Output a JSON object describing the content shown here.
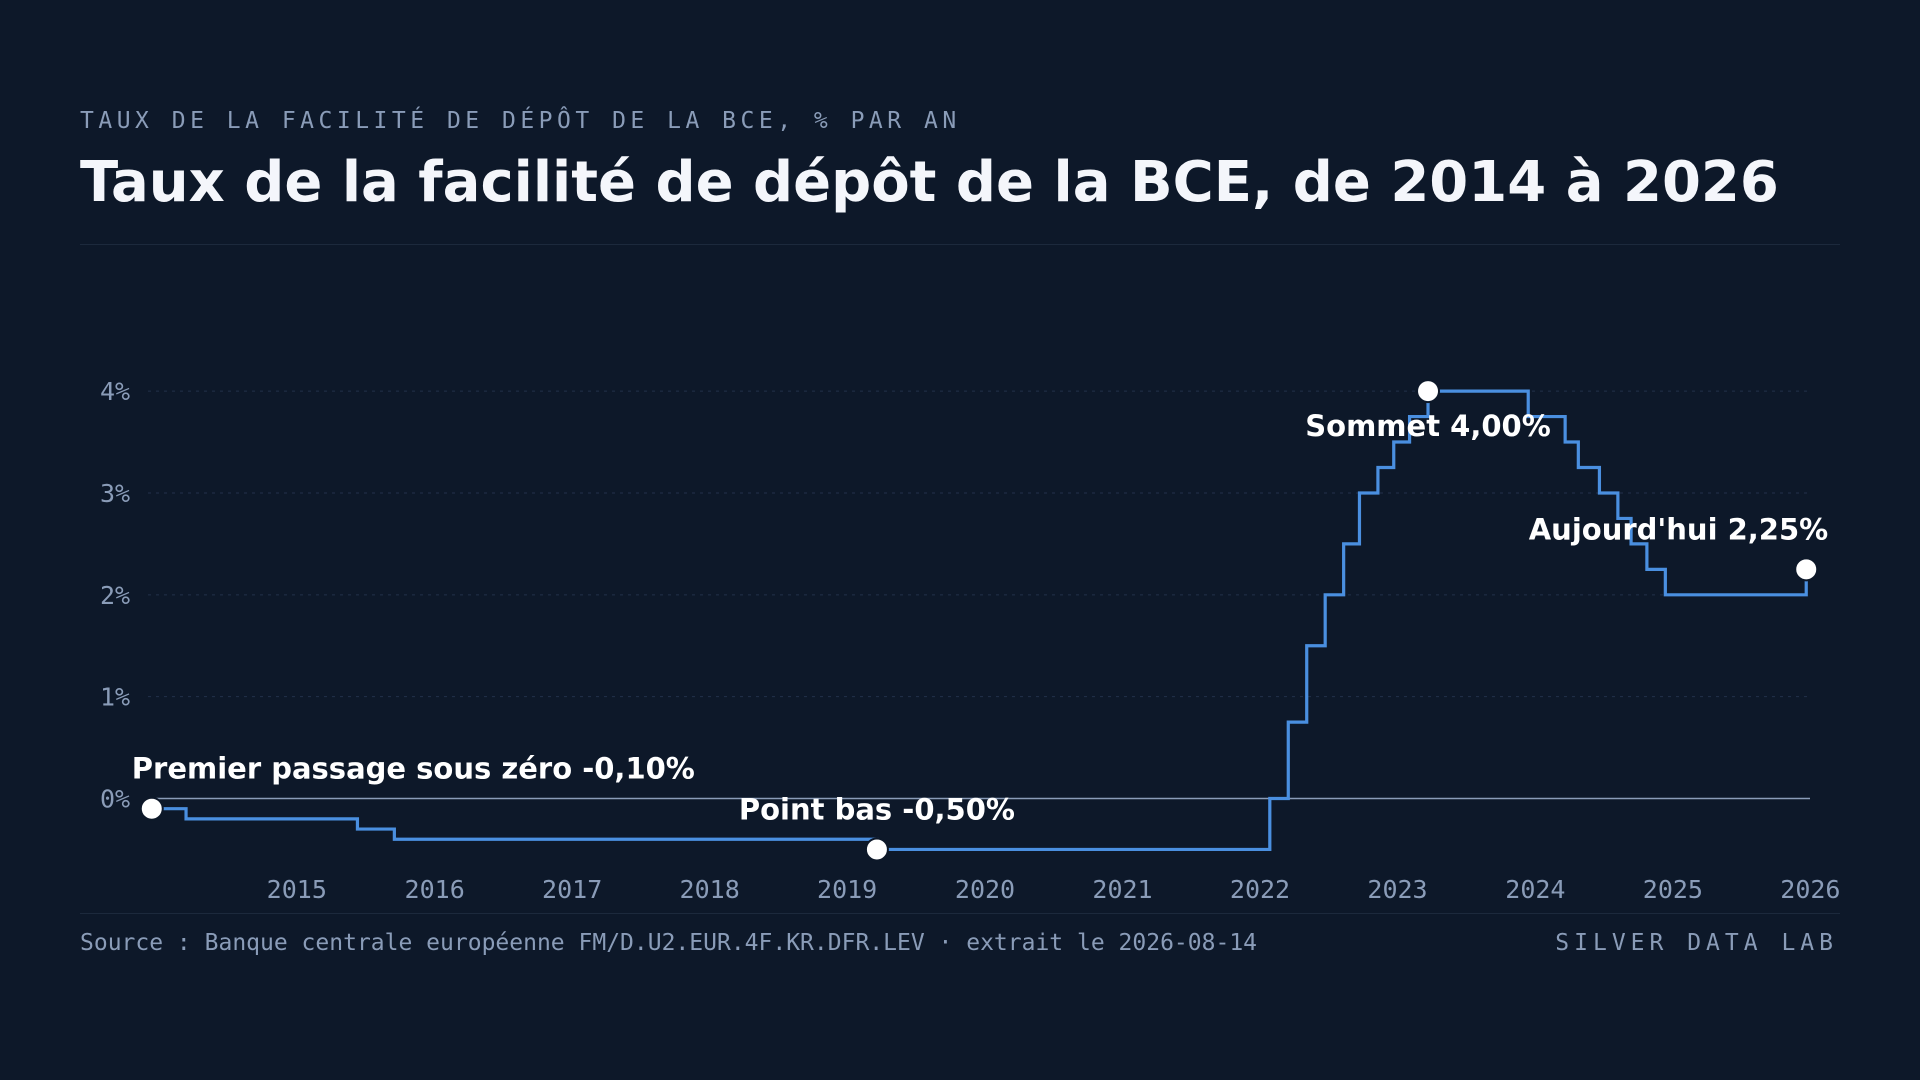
{
  "header": {
    "kicker": "TAUX DE LA FACILITÉ DE DÉPÔT DE LA BCE, % PAR AN",
    "title": "Taux de la facilité de dépôt de la BCE, de 2014 à 2026"
  },
  "footer": {
    "source": "Source : Banque centrale européenne FM/D.U2.EUR.4F.KR.DFR.LEV · extrait le 2026-08-14",
    "brand": "SILVER DATA LAB"
  },
  "chart_data": {
    "type": "line",
    "step": true,
    "title": "Taux de la facilité de dépôt de la BCE, de 2014 à 2026",
    "xlabel": "",
    "ylabel": "",
    "xlim": [
      "2014-06-01",
      "2026-06-30"
    ],
    "ylim": [
      -0.8,
      4.6
    ],
    "grid": true,
    "x_ticks": [
      "2015",
      "2016",
      "2017",
      "2018",
      "2019",
      "2020",
      "2021",
      "2022",
      "2023",
      "2024",
      "2025",
      "2026"
    ],
    "y_ticks": [
      {
        "value": 0,
        "label": "0%"
      },
      {
        "value": 1,
        "label": "1%"
      },
      {
        "value": 2,
        "label": "2%"
      },
      {
        "value": 3,
        "label": "3%"
      },
      {
        "value": 4,
        "label": "4%"
      }
    ],
    "series": [
      {
        "color": "#4a8fe0",
        "points": [
          {
            "x": "2014-06-11",
            "y": -0.1
          },
          {
            "x": "2014-09-10",
            "y": -0.2
          },
          {
            "x": "2015-12-09",
            "y": -0.3
          },
          {
            "x": "2016-03-16",
            "y": -0.4
          },
          {
            "x": "2019-09-18",
            "y": -0.5
          },
          {
            "x": "2022-07-27",
            "y": 0.0
          },
          {
            "x": "2022-09-14",
            "y": 0.75
          },
          {
            "x": "2022-11-02",
            "y": 1.5
          },
          {
            "x": "2022-12-21",
            "y": 2.0
          },
          {
            "x": "2023-02-08",
            "y": 2.5
          },
          {
            "x": "2023-03-22",
            "y": 3.0
          },
          {
            "x": "2023-05-10",
            "y": 3.25
          },
          {
            "x": "2023-06-21",
            "y": 3.5
          },
          {
            "x": "2023-08-02",
            "y": 3.75
          },
          {
            "x": "2023-09-20",
            "y": 4.0
          },
          {
            "x": "2024-06-12",
            "y": 3.75
          },
          {
            "x": "2024-09-18",
            "y": 3.5
          },
          {
            "x": "2024-10-23",
            "y": 3.25
          },
          {
            "x": "2024-12-18",
            "y": 3.0
          },
          {
            "x": "2025-02-05",
            "y": 2.75
          },
          {
            "x": "2025-03-12",
            "y": 2.5
          },
          {
            "x": "2025-04-23",
            "y": 2.25
          },
          {
            "x": "2025-06-11",
            "y": 2.0
          },
          {
            "x": "2026-06-20",
            "y": 2.25
          }
        ],
        "end_x": "2026-06-20"
      }
    ],
    "annotations": [
      {
        "x": "2014-06-11",
        "y": -0.1,
        "label": "Premier passage sous zéro -0,10%",
        "position": "above-right"
      },
      {
        "x": "2019-09-18",
        "y": -0.5,
        "label": "Point bas -0,50%",
        "position": "above"
      },
      {
        "x": "2023-09-20",
        "y": 4.0,
        "label": "Sommet 4,00%",
        "position": "below"
      },
      {
        "x": "2026-06-20",
        "y": 2.25,
        "label": "Aujourd'hui 2,25%",
        "position": "above-left"
      }
    ]
  }
}
